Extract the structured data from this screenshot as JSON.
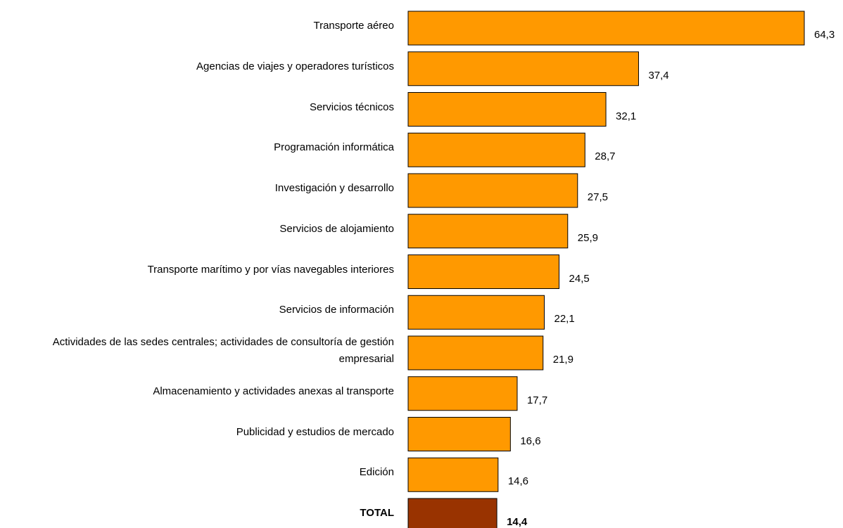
{
  "chart_data": {
    "type": "bar",
    "orientation": "horizontal",
    "categories": [
      "Transporte aéreo",
      "Agencias de viajes y operadores turísticos",
      "Servicios técnicos",
      "Programación informática",
      "Investigación y desarrollo",
      "Servicios de alojamiento",
      "Transporte marítimo y por vías navegables interiores",
      "Servicios de información",
      "Actividades de las sedes centrales; actividades de consultoría de gestión empresarial",
      "Almacenamiento y actividades anexas al transporte",
      "Publicidad y estudios de mercado",
      "Edición",
      "TOTAL"
    ],
    "values": [
      64.3,
      37.4,
      32.1,
      28.7,
      27.5,
      25.9,
      24.5,
      22.1,
      21.9,
      17.7,
      16.6,
      14.6,
      14.4
    ],
    "value_labels": [
      "64,3",
      "37,4",
      "32,1",
      "28,7",
      "27,5",
      "25,9",
      "24,5",
      "22,1",
      "21,9",
      "17,7",
      "16,6",
      "14,6",
      "14,4"
    ],
    "colors": [
      "#ff9900",
      "#ff9900",
      "#ff9900",
      "#ff9900",
      "#ff9900",
      "#ff9900",
      "#ff9900",
      "#ff9900",
      "#ff9900",
      "#ff9900",
      "#ff9900",
      "#ff9900",
      "#993300"
    ],
    "bold": [
      false,
      false,
      false,
      false,
      false,
      false,
      false,
      false,
      false,
      false,
      false,
      false,
      true
    ]
  }
}
